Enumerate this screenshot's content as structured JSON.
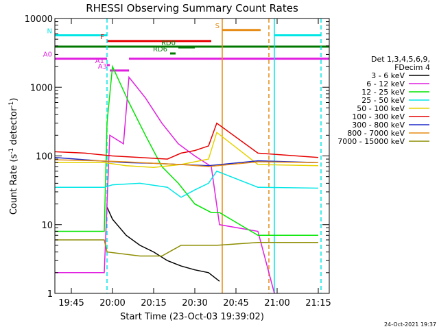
{
  "chart_data": {
    "type": "line",
    "title": "RHESSI Observing Summary Count Rates",
    "xlabel": "Start Time (23-Oct-03 19:39:02)",
    "ylabel_parts": [
      "Count Rate (s",
      "-1",
      " detector",
      "-1",
      ")"
    ],
    "yscale": "log",
    "ylim": [
      1,
      10000
    ],
    "xlim": [
      "19:39",
      "21:19"
    ],
    "x_ticks": [
      "19:45",
      "20:00",
      "20:15",
      "20:30",
      "20:45",
      "21:00",
      "21:15"
    ],
    "y_ticks": [
      "1",
      "10",
      "100",
      "1000",
      "10000"
    ],
    "legend_title": [
      "Det 1,3,4,5,6,9,",
      "FDecim 4"
    ],
    "legend_placement": "right",
    "date_stamp": "24-Oct-2021 19:37",
    "series": [
      {
        "name": "3 - 6 keV",
        "color": "#000000",
        "points": [
          [
            "19:58",
            18
          ],
          [
            "20:00",
            12
          ],
          [
            "20:05",
            7
          ],
          [
            "20:10",
            5
          ],
          [
            "20:15",
            4
          ],
          [
            "20:20",
            3
          ],
          [
            "20:25",
            2.5
          ],
          [
            "20:30",
            2.2
          ],
          [
            "20:35",
            2
          ],
          [
            "20:39",
            1.5
          ]
        ]
      },
      {
        "name": "6 - 12 keV",
        "color": "#e11ee1",
        "points": [
          [
            "19:39",
            2
          ],
          [
            "19:57",
            2
          ],
          [
            "19:59",
            200
          ],
          [
            "20:04",
            150
          ],
          [
            "20:06",
            1400
          ],
          [
            "20:12",
            700
          ],
          [
            "20:18",
            300
          ],
          [
            "20:24",
            150
          ],
          [
            "20:30",
            100
          ],
          [
            "20:36",
            70
          ],
          [
            "20:39",
            10
          ],
          [
            "20:53",
            8
          ],
          [
            "20:59",
            1
          ]
        ]
      },
      {
        "name": "12 - 25 keV",
        "color": "#00e600",
        "points": [
          [
            "19:39",
            8
          ],
          [
            "19:57",
            8
          ],
          [
            "19:58",
            300
          ],
          [
            "20:00",
            2000
          ],
          [
            "20:06",
            600
          ],
          [
            "20:12",
            200
          ],
          [
            "20:18",
            70
          ],
          [
            "20:24",
            40
          ],
          [
            "20:30",
            20
          ],
          [
            "20:36",
            15
          ],
          [
            "20:39",
            15
          ],
          [
            "20:53",
            7
          ],
          [
            "21:15",
            7
          ]
        ]
      },
      {
        "name": "25 - 50 keV",
        "color": "#00e6e6",
        "points": [
          [
            "19:39",
            35
          ],
          [
            "19:57",
            35
          ],
          [
            "20:00",
            38
          ],
          [
            "20:10",
            40
          ],
          [
            "20:20",
            35
          ],
          [
            "20:25",
            25
          ],
          [
            "20:30",
            32
          ],
          [
            "20:35",
            40
          ],
          [
            "20:38",
            60
          ],
          [
            "20:53",
            35
          ],
          [
            "21:15",
            34
          ]
        ]
      },
      {
        "name": "50 - 100 keV",
        "color": "#e6d200",
        "points": [
          [
            "19:39",
            80
          ],
          [
            "19:57",
            80
          ],
          [
            "20:05",
            72
          ],
          [
            "20:15",
            68
          ],
          [
            "20:25",
            75
          ],
          [
            "20:35",
            90
          ],
          [
            "20:38",
            220
          ],
          [
            "20:53",
            75
          ],
          [
            "21:15",
            72
          ]
        ]
      },
      {
        "name": "100 - 300 keV",
        "color": "#e60000",
        "points": [
          [
            "19:39",
            115
          ],
          [
            "19:50",
            110
          ],
          [
            "20:00",
            100
          ],
          [
            "20:10",
            95
          ],
          [
            "20:20",
            90
          ],
          [
            "20:25",
            110
          ],
          [
            "20:30",
            120
          ],
          [
            "20:35",
            140
          ],
          [
            "20:38",
            300
          ],
          [
            "20:53",
            110
          ],
          [
            "21:15",
            95
          ]
        ]
      },
      {
        "name": "300 - 800 keV",
        "color": "#1e28c8",
        "points": [
          [
            "19:39",
            95
          ],
          [
            "19:55",
            85
          ],
          [
            "20:05",
            80
          ],
          [
            "20:15",
            78
          ],
          [
            "20:25",
            75
          ],
          [
            "20:35",
            72
          ],
          [
            "20:53",
            85
          ],
          [
            "21:15",
            80
          ]
        ]
      },
      {
        "name": "800 - 7000 keV",
        "color": "#e68c14",
        "points": [
          [
            "19:39",
            88
          ],
          [
            "19:55",
            85
          ],
          [
            "20:05",
            82
          ],
          [
            "20:15",
            78
          ],
          [
            "20:25",
            75
          ],
          [
            "20:35",
            70
          ],
          [
            "20:53",
            82
          ],
          [
            "21:15",
            80
          ]
        ]
      },
      {
        "name": "7000 - 15000 keV",
        "color": "#8c8c00",
        "points": [
          [
            "19:39",
            6
          ],
          [
            "19:57",
            6
          ],
          [
            "19:58",
            4
          ],
          [
            "20:10",
            3.5
          ],
          [
            "20:18",
            3.5
          ],
          [
            "20:25",
            5
          ],
          [
            "20:38",
            5
          ],
          [
            "20:53",
            5.5
          ],
          [
            "21:15",
            5.5
          ]
        ]
      }
    ],
    "vertical_markers": [
      {
        "time": "19:58",
        "color": "#00e6e6",
        "style": "dashed"
      },
      {
        "time": "20:40",
        "color": "#e68c14",
        "style": "solid"
      },
      {
        "time": "20:57",
        "color": "#e68c14",
        "style": "dashed"
      },
      {
        "time": "20:59",
        "color": "#00e6e6",
        "style": "solid"
      },
      {
        "time": "21:16",
        "color": "#00e6e6",
        "style": "dashed"
      }
    ],
    "flag_bars": [
      {
        "label": "N",
        "color": "#00e6e6",
        "segments": [
          [
            "19:39",
            "19:58"
          ],
          [
            "20:59",
            "21:16"
          ]
        ],
        "level": 5700
      },
      {
        "label": "S",
        "color": "#e68c14",
        "segments": [
          [
            "20:40",
            "20:54"
          ]
        ],
        "level": 6800
      },
      {
        "label": "F",
        "color": "#e60000",
        "segments": [
          [
            "19:58",
            "20:36"
          ]
        ],
        "level": 4700
      },
      {
        "label": "",
        "color": "#007800",
        "segments": [
          [
            "19:39",
            "21:19"
          ]
        ],
        "level": 3900
      },
      {
        "label": "RD0",
        "color": "#007800",
        "segments": [
          [
            "20:24",
            "20:30"
          ]
        ],
        "level": 3800
      },
      {
        "label": "RD6",
        "color": "#007800",
        "segments": [
          [
            "20:21",
            "20:23"
          ]
        ],
        "level": 3100
      },
      {
        "label": "A0",
        "color": "#e11ee1",
        "segments": [
          [
            "19:39",
            "19:58"
          ],
          [
            "20:06",
            "21:19"
          ]
        ],
        "level": 2600
      },
      {
        "label": "A1",
        "color": "#e11ee1",
        "segments": [
          [
            "19:58",
            "19:59"
          ]
        ],
        "level": 2100
      },
      {
        "label": "A3",
        "color": "#e11ee1",
        "segments": [
          [
            "19:59",
            "20:06"
          ]
        ],
        "level": 1750
      }
    ]
  }
}
